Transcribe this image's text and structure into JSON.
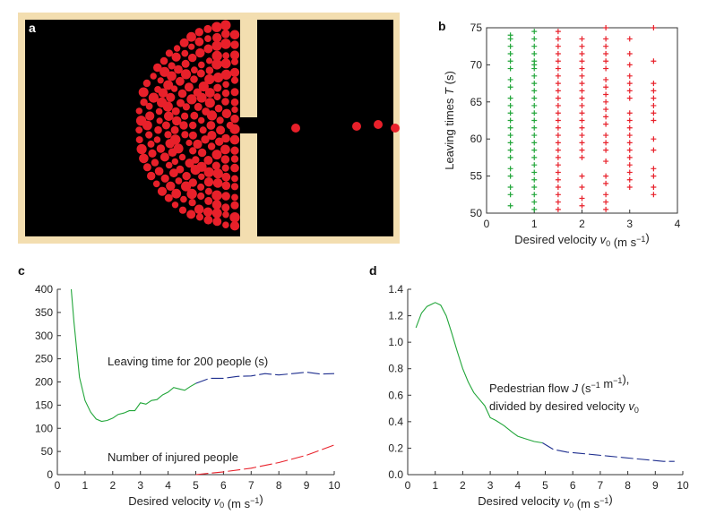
{
  "panels": {
    "a": {
      "label": "a"
    },
    "b": {
      "label": "b"
    },
    "c": {
      "label": "c"
    },
    "d": {
      "label": "d"
    }
  },
  "colors": {
    "green": "#22a63a",
    "red": "#e8202a",
    "blue": "#1f2f8f",
    "frame": "#f3deb0",
    "room": "#000000"
  },
  "chart_data": [
    {
      "id": "a",
      "type": "other",
      "description_free": true
    },
    {
      "id": "b",
      "type": "scatter",
      "xlabel": "Desired velocity v₀ (m s⁻¹)",
      "ylabel": "Leaving times T (s)",
      "xlim": [
        0,
        4
      ],
      "ylim": [
        50,
        75
      ],
      "xticks": [
        0,
        1,
        2,
        3,
        4
      ],
      "yticks": [
        50,
        55,
        60,
        65,
        70,
        75
      ],
      "series": [
        {
          "color": "green",
          "x": 0.5,
          "values": [
            51,
            52.5,
            53.5,
            55,
            56,
            57.5,
            58.5,
            59.5,
            60.5,
            61.5,
            62.5,
            63.5,
            64.5,
            65.5,
            67,
            68,
            69.5,
            70.5,
            71.5,
            72.5,
            73.5,
            74
          ]
        },
        {
          "color": "green",
          "x": 1.0,
          "values": [
            50.5,
            51.5,
            52.5,
            53.5,
            54.5,
            55.5,
            56.5,
            57.5,
            58.5,
            59.5,
            60.5,
            61.5,
            62.5,
            63.5,
            64.5,
            65.5,
            66.5,
            67.5,
            68.5,
            69.5,
            70,
            70.5,
            71.5,
            72.5,
            73.5,
            74.5
          ]
        },
        {
          "color": "red",
          "x": 1.5,
          "values": [
            50.5,
            51.5,
            52.5,
            53.5,
            54.5,
            55.5,
            56.5,
            57.5,
            58.5,
            59.5,
            60.5,
            61.5,
            62.5,
            63.5,
            64.5,
            65.5,
            66.5,
            67.5,
            68.5,
            69.5,
            70.5,
            71.5,
            72.5,
            73.5,
            74.5
          ]
        },
        {
          "color": "red",
          "x": 2.0,
          "values": [
            51,
            52,
            53.5,
            55,
            57.5,
            58.5,
            59.5,
            60.5,
            61.5,
            62.5,
            63.5,
            64.5,
            65.5,
            66.5,
            67.5,
            68.5,
            69.5,
            70.5,
            71.5,
            72.5,
            73.5
          ]
        },
        {
          "color": "red",
          "x": 2.5,
          "values": [
            50.5,
            51.5,
            52.5,
            54,
            55,
            57,
            58.5,
            59.5,
            60.5,
            62,
            63,
            64,
            65,
            66,
            67,
            68,
            69.5,
            70.5,
            71.5,
            72.5,
            73.5,
            75
          ]
        },
        {
          "color": "red",
          "x": 3.0,
          "values": [
            53.5,
            54.5,
            55.5,
            56.5,
            57.5,
            58.5,
            59.5,
            60.5,
            61.5,
            62.5,
            63.5,
            65.5,
            66.5,
            67.5,
            68.5,
            70,
            71.5,
            73.5
          ]
        },
        {
          "color": "red",
          "x": 3.5,
          "values": [
            52.5,
            53.5,
            55,
            56,
            58.5,
            60,
            62.5,
            63.5,
            64.5,
            65.5,
            66.5,
            67.5,
            70.5,
            75
          ]
        }
      ]
    },
    {
      "id": "c",
      "type": "line",
      "xlabel": "Desired velocity v₀ (m s⁻¹)",
      "xlim": [
        0,
        10
      ],
      "ylim": [
        0,
        400
      ],
      "xticks": [
        0,
        1,
        2,
        3,
        4,
        5,
        6,
        7,
        8,
        9,
        10
      ],
      "yticks": [
        0,
        50,
        100,
        150,
        200,
        250,
        300,
        350,
        400
      ],
      "annotations": [
        "Leaving time for 200 people (s)",
        "Number of injured people"
      ],
      "series": [
        {
          "style": "solid",
          "color": "green",
          "x": [
            0.5,
            0.6,
            0.8,
            1.0,
            1.2,
            1.4,
            1.6,
            1.8,
            2.0,
            2.2,
            2.4,
            2.6,
            2.8,
            3.0,
            3.2,
            3.4,
            3.6,
            3.8,
            4.0,
            4.2,
            4.4,
            4.6,
            4.8,
            5.0
          ],
          "values": [
            400,
            330,
            210,
            160,
            135,
            120,
            115,
            117,
            122,
            130,
            133,
            138,
            138,
            155,
            152,
            160,
            162,
            172,
            178,
            188,
            185,
            182,
            190,
            197
          ]
        },
        {
          "style": "dashed",
          "color": "blue",
          "x": [
            5.0,
            5.5,
            6.0,
            6.5,
            7.0,
            7.5,
            8.0,
            8.5,
            9.0,
            9.5,
            10.0
          ],
          "values": [
            197,
            208,
            208,
            212,
            213,
            218,
            215,
            218,
            221,
            217,
            218
          ]
        },
        {
          "style": "dashed",
          "color": "red",
          "x": [
            5.0,
            6.0,
            7.0,
            8.0,
            9.0,
            10.0
          ],
          "values": [
            0,
            6,
            14,
            26,
            42,
            64
          ]
        }
      ]
    },
    {
      "id": "d",
      "type": "line",
      "xlabel": "Desired velocity v₀ (m s⁻¹)",
      "xlim": [
        0,
        10
      ],
      "ylim": [
        0,
        1.4
      ],
      "xticks": [
        0,
        1,
        2,
        3,
        4,
        5,
        6,
        7,
        8,
        9,
        10
      ],
      "yticks": [
        0,
        0.2,
        0.4,
        0.6,
        0.8,
        1.0,
        1.2,
        1.4
      ],
      "annotations": [
        "Pedestrian flow J (s⁻¹ m⁻¹),",
        "divided by desired velocity v₀"
      ],
      "series": [
        {
          "style": "solid",
          "color": "green",
          "x": [
            0.3,
            0.5,
            0.7,
            0.9,
            1.0,
            1.2,
            1.4,
            1.6,
            1.8,
            2.0,
            2.2,
            2.4,
            2.6,
            2.8,
            3.0,
            3.2,
            3.5,
            3.8,
            4.0,
            4.3,
            4.6,
            4.9
          ],
          "values": [
            1.11,
            1.22,
            1.27,
            1.29,
            1.3,
            1.28,
            1.2,
            1.07,
            0.93,
            0.8,
            0.7,
            0.62,
            0.57,
            0.52,
            0.43,
            0.41,
            0.37,
            0.32,
            0.29,
            0.27,
            0.25,
            0.24
          ]
        },
        {
          "style": "dashed",
          "color": "blue",
          "x": [
            4.9,
            5.3,
            5.8,
            6.3,
            6.8,
            7.3,
            7.8,
            8.3,
            8.8,
            9.3,
            9.7
          ],
          "values": [
            0.24,
            0.19,
            0.17,
            0.16,
            0.15,
            0.14,
            0.13,
            0.12,
            0.11,
            0.1,
            0.1
          ]
        }
      ]
    }
  ]
}
